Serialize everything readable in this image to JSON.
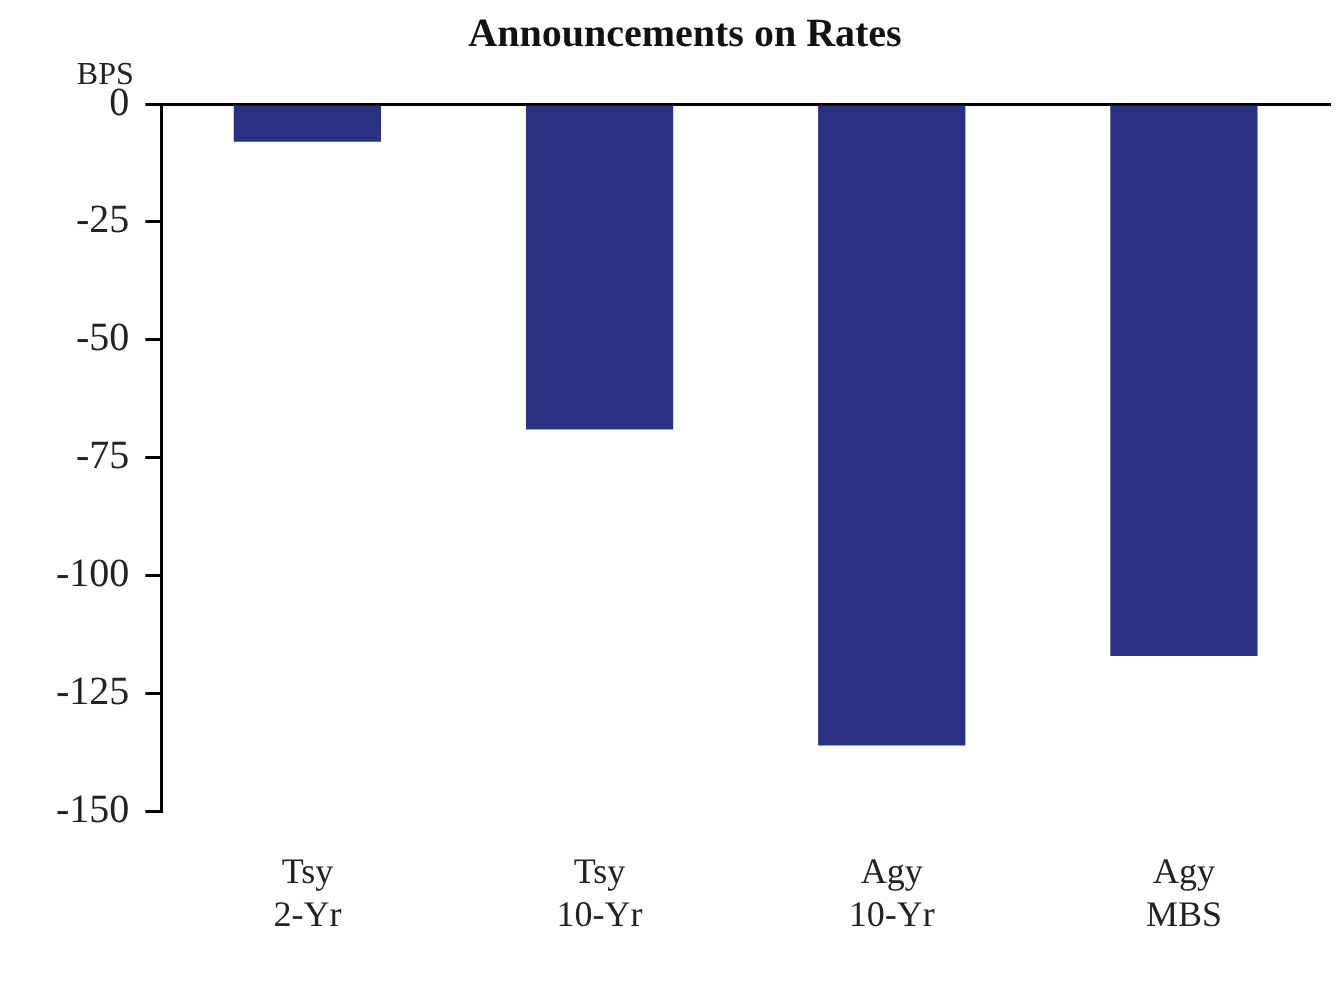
{
  "chart_data": {
    "type": "bar",
    "title": "Announcements on Rates",
    "ylabel": "BPS",
    "categories": [
      "Tsy\n2-Yr",
      "Tsy\n10-Yr",
      "Agy\n10-Yr",
      "Agy\nMBS"
    ],
    "values": [
      -8,
      -69,
      -136,
      -117
    ],
    "color": "#2b3182",
    "ylim": [
      -150,
      0
    ],
    "yticks": [
      -150,
      -125,
      -100,
      -75,
      -50,
      -25,
      0
    ],
    "grid": false,
    "legend": false
  }
}
